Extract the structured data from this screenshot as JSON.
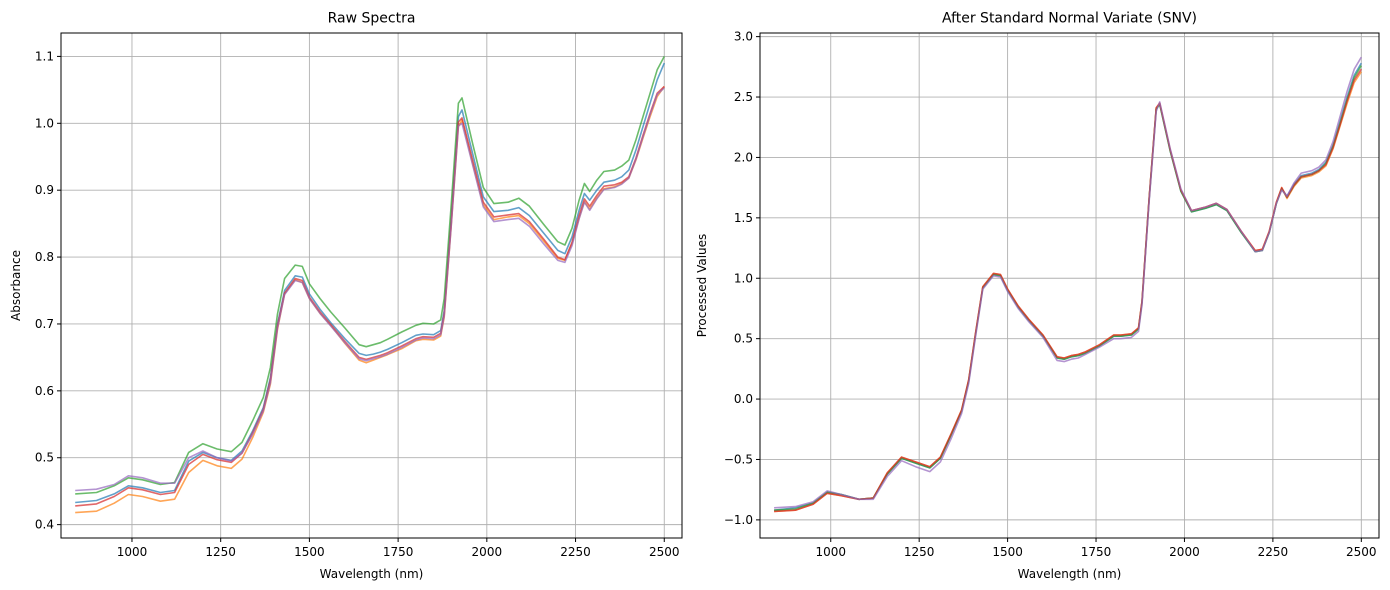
{
  "chart_data": [
    {
      "type": "line",
      "title": "Raw Spectra",
      "xlabel": "Wavelength (nm)",
      "ylabel": "Absorbance",
      "xlim": [
        800,
        2550
      ],
      "ylim": [
        0.38,
        1.135
      ],
      "xticks": [
        1000,
        1250,
        1500,
        1750,
        2000,
        2250,
        2500
      ],
      "yticks": [
        0.4,
        0.5,
        0.6,
        0.7,
        0.8,
        0.9,
        1.0,
        1.1
      ],
      "ytick_labels": [
        "0.4",
        "0.5",
        "0.6",
        "0.7",
        "0.8",
        "0.9",
        "1.0",
        "1.1"
      ],
      "grid": true,
      "x": [
        840,
        900,
        950,
        990,
        1030,
        1080,
        1120,
        1160,
        1200,
        1240,
        1280,
        1310,
        1340,
        1370,
        1390,
        1410,
        1430,
        1460,
        1480,
        1500,
        1530,
        1560,
        1600,
        1640,
        1660,
        1680,
        1700,
        1720,
        1760,
        1800,
        1820,
        1850,
        1870,
        1880,
        1900,
        1920,
        1930,
        1960,
        1990,
        2020,
        2060,
        2090,
        2120,
        2160,
        2200,
        2220,
        2240,
        2260,
        2275,
        2290,
        2310,
        2330,
        2360,
        2380,
        2400,
        2420,
        2440,
        2460,
        2480,
        2500
      ],
      "series": [
        {
          "color": "#1f77b4",
          "values": [
            0.433,
            0.436,
            0.446,
            0.458,
            0.455,
            0.448,
            0.451,
            0.495,
            0.508,
            0.5,
            0.496,
            0.51,
            0.54,
            0.575,
            0.62,
            0.7,
            0.75,
            0.772,
            0.77,
            0.745,
            0.722,
            0.702,
            0.678,
            0.656,
            0.653,
            0.655,
            0.658,
            0.662,
            0.672,
            0.683,
            0.685,
            0.684,
            0.69,
            0.72,
            0.86,
            1.01,
            1.02,
            0.955,
            0.89,
            0.868,
            0.87,
            0.874,
            0.862,
            0.836,
            0.81,
            0.805,
            0.83,
            0.87,
            0.895,
            0.885,
            0.9,
            0.912,
            0.915,
            0.92,
            0.93,
            0.96,
            0.995,
            1.03,
            1.065,
            1.09
          ],
          "opacity": 0.7
        },
        {
          "color": "#ff7f0e",
          "values": [
            0.418,
            0.42,
            0.432,
            0.445,
            0.442,
            0.435,
            0.438,
            0.478,
            0.496,
            0.488,
            0.484,
            0.498,
            0.53,
            0.568,
            0.61,
            0.692,
            0.745,
            0.766,
            0.762,
            0.738,
            0.716,
            0.698,
            0.671,
            0.646,
            0.642,
            0.646,
            0.65,
            0.654,
            0.663,
            0.675,
            0.677,
            0.676,
            0.682,
            0.71,
            0.848,
            0.995,
            1.005,
            0.94,
            0.878,
            0.856,
            0.86,
            0.862,
            0.85,
            0.824,
            0.798,
            0.795,
            0.82,
            0.858,
            0.883,
            0.872,
            0.888,
            0.902,
            0.905,
            0.91,
            0.918,
            0.945,
            0.978,
            1.01,
            1.04,
            1.055
          ],
          "opacity": 0.7
        },
        {
          "color": "#2ca02c",
          "values": [
            0.446,
            0.448,
            0.458,
            0.47,
            0.467,
            0.46,
            0.463,
            0.508,
            0.521,
            0.513,
            0.509,
            0.523,
            0.555,
            0.59,
            0.635,
            0.715,
            0.768,
            0.788,
            0.786,
            0.76,
            0.738,
            0.718,
            0.694,
            0.669,
            0.666,
            0.669,
            0.672,
            0.677,
            0.688,
            0.698,
            0.701,
            0.7,
            0.706,
            0.738,
            0.88,
            1.03,
            1.038,
            0.97,
            0.904,
            0.88,
            0.882,
            0.888,
            0.876,
            0.849,
            0.823,
            0.818,
            0.843,
            0.885,
            0.91,
            0.898,
            0.915,
            0.928,
            0.93,
            0.936,
            0.945,
            0.975,
            1.01,
            1.045,
            1.08,
            1.1
          ],
          "opacity": 0.7
        },
        {
          "color": "#d62728",
          "values": [
            0.428,
            0.431,
            0.442,
            0.455,
            0.452,
            0.445,
            0.448,
            0.49,
            0.505,
            0.497,
            0.493,
            0.507,
            0.537,
            0.572,
            0.616,
            0.697,
            0.746,
            0.768,
            0.765,
            0.74,
            0.718,
            0.699,
            0.674,
            0.65,
            0.647,
            0.65,
            0.653,
            0.657,
            0.667,
            0.678,
            0.681,
            0.68,
            0.686,
            0.715,
            0.852,
            1.002,
            1.008,
            0.945,
            0.882,
            0.86,
            0.863,
            0.865,
            0.853,
            0.827,
            0.8,
            0.796,
            0.822,
            0.862,
            0.887,
            0.876,
            0.892,
            0.906,
            0.908,
            0.912,
            0.92,
            0.948,
            0.982,
            1.015,
            1.045,
            1.055
          ],
          "opacity": 0.7
        },
        {
          "color": "#9467bd",
          "values": [
            0.451,
            0.453,
            0.46,
            0.473,
            0.47,
            0.462,
            0.462,
            0.5,
            0.51,
            0.5,
            0.495,
            0.507,
            0.535,
            0.57,
            0.612,
            0.694,
            0.744,
            0.765,
            0.762,
            0.738,
            0.716,
            0.697,
            0.672,
            0.648,
            0.645,
            0.648,
            0.651,
            0.655,
            0.665,
            0.676,
            0.679,
            0.678,
            0.684,
            0.712,
            0.848,
            0.996,
            1.0,
            0.938,
            0.875,
            0.853,
            0.856,
            0.858,
            0.846,
            0.82,
            0.795,
            0.792,
            0.817,
            0.857,
            0.882,
            0.87,
            0.887,
            0.901,
            0.904,
            0.909,
            0.918,
            0.946,
            0.98,
            1.013,
            1.043,
            1.053
          ],
          "opacity": 0.7
        }
      ]
    },
    {
      "type": "line",
      "title": "After Standard Normal Variate (SNV)",
      "xlabel": "Wavelength (nm)",
      "ylabel": "Processed Values",
      "xlim": [
        800,
        2550
      ],
      "ylim": [
        -1.15,
        3.03
      ],
      "xticks": [
        1000,
        1250,
        1500,
        1750,
        2000,
        2250,
        2500
      ],
      "yticks": [
        -1.0,
        -0.5,
        0.0,
        0.5,
        1.0,
        1.5,
        2.0,
        2.5,
        3.0
      ],
      "ytick_labels": [
        "−1.0",
        "−0.5",
        "0.0",
        "0.5",
        "1.0",
        "1.5",
        "2.0",
        "2.5",
        "3.0"
      ],
      "grid": true,
      "x": [
        840,
        900,
        950,
        990,
        1030,
        1080,
        1120,
        1160,
        1200,
        1240,
        1280,
        1310,
        1340,
        1370,
        1390,
        1410,
        1430,
        1460,
        1480,
        1500,
        1530,
        1560,
        1600,
        1640,
        1660,
        1680,
        1700,
        1720,
        1760,
        1800,
        1820,
        1850,
        1870,
        1880,
        1900,
        1920,
        1930,
        1960,
        1990,
        2020,
        2060,
        2090,
        2120,
        2160,
        2200,
        2220,
        2240,
        2260,
        2275,
        2290,
        2310,
        2330,
        2360,
        2380,
        2400,
        2420,
        2440,
        2460,
        2480,
        2500
      ],
      "series": [
        {
          "color": "#1f77b4",
          "values": [
            -0.92,
            -0.9,
            -0.86,
            -0.77,
            -0.79,
            -0.83,
            -0.82,
            -0.62,
            -0.49,
            -0.53,
            -0.57,
            -0.49,
            -0.3,
            -0.1,
            0.15,
            0.55,
            0.92,
            1.03,
            1.02,
            0.9,
            0.76,
            0.65,
            0.52,
            0.34,
            0.33,
            0.35,
            0.36,
            0.38,
            0.44,
            0.52,
            0.52,
            0.53,
            0.58,
            0.8,
            1.65,
            2.4,
            2.44,
            2.05,
            1.72,
            1.55,
            1.58,
            1.61,
            1.56,
            1.38,
            1.22,
            1.23,
            1.38,
            1.62,
            1.74,
            1.68,
            1.78,
            1.85,
            1.87,
            1.9,
            1.96,
            2.1,
            2.3,
            2.5,
            2.68,
            2.78
          ],
          "opacity": 0.7
        },
        {
          "color": "#ff7f0e",
          "values": [
            -0.93,
            -0.92,
            -0.87,
            -0.78,
            -0.8,
            -0.83,
            -0.82,
            -0.61,
            -0.48,
            -0.52,
            -0.56,
            -0.48,
            -0.29,
            -0.09,
            0.16,
            0.56,
            0.93,
            1.04,
            1.03,
            0.91,
            0.77,
            0.66,
            0.53,
            0.35,
            0.34,
            0.36,
            0.37,
            0.39,
            0.45,
            0.53,
            0.53,
            0.54,
            0.59,
            0.81,
            1.66,
            2.41,
            2.45,
            2.06,
            1.73,
            1.56,
            1.59,
            1.62,
            1.57,
            1.39,
            1.23,
            1.24,
            1.39,
            1.63,
            1.75,
            1.66,
            1.76,
            1.83,
            1.85,
            1.88,
            1.93,
            2.07,
            2.26,
            2.45,
            2.62,
            2.71
          ],
          "opacity": 0.7
        },
        {
          "color": "#2ca02c",
          "values": [
            -0.92,
            -0.91,
            -0.86,
            -0.77,
            -0.79,
            -0.83,
            -0.82,
            -0.62,
            -0.49,
            -0.53,
            -0.57,
            -0.49,
            -0.3,
            -0.1,
            0.15,
            0.55,
            0.92,
            1.03,
            1.02,
            0.9,
            0.76,
            0.65,
            0.52,
            0.34,
            0.33,
            0.35,
            0.36,
            0.38,
            0.44,
            0.52,
            0.52,
            0.53,
            0.58,
            0.8,
            1.65,
            2.4,
            2.44,
            2.05,
            1.72,
            1.55,
            1.58,
            1.61,
            1.56,
            1.38,
            1.22,
            1.23,
            1.38,
            1.62,
            1.74,
            1.67,
            1.77,
            1.84,
            1.86,
            1.89,
            1.95,
            2.09,
            2.28,
            2.48,
            2.66,
            2.76
          ],
          "opacity": 0.7
        },
        {
          "color": "#d62728",
          "values": [
            -0.93,
            -0.92,
            -0.87,
            -0.78,
            -0.8,
            -0.83,
            -0.82,
            -0.61,
            -0.48,
            -0.52,
            -0.56,
            -0.48,
            -0.29,
            -0.09,
            0.16,
            0.56,
            0.93,
            1.04,
            1.03,
            0.91,
            0.77,
            0.66,
            0.53,
            0.35,
            0.34,
            0.36,
            0.37,
            0.39,
            0.45,
            0.53,
            0.53,
            0.54,
            0.59,
            0.81,
            1.66,
            2.41,
            2.45,
            2.06,
            1.73,
            1.56,
            1.59,
            1.62,
            1.57,
            1.39,
            1.23,
            1.24,
            1.39,
            1.63,
            1.75,
            1.67,
            1.77,
            1.84,
            1.86,
            1.89,
            1.94,
            2.08,
            2.27,
            2.47,
            2.64,
            2.73
          ],
          "opacity": 0.7
        },
        {
          "color": "#9467bd",
          "values": [
            -0.9,
            -0.89,
            -0.85,
            -0.76,
            -0.79,
            -0.83,
            -0.83,
            -0.64,
            -0.51,
            -0.56,
            -0.6,
            -0.52,
            -0.33,
            -0.12,
            0.13,
            0.53,
            0.91,
            1.02,
            1.01,
            0.89,
            0.75,
            0.64,
            0.51,
            0.32,
            0.31,
            0.33,
            0.34,
            0.37,
            0.43,
            0.5,
            0.5,
            0.51,
            0.56,
            0.78,
            1.63,
            2.38,
            2.46,
            2.07,
            1.74,
            1.56,
            1.59,
            1.62,
            1.57,
            1.39,
            1.22,
            1.23,
            1.38,
            1.62,
            1.73,
            1.68,
            1.79,
            1.87,
            1.89,
            1.92,
            1.98,
            2.13,
            2.34,
            2.55,
            2.73,
            2.83
          ],
          "opacity": 0.7
        }
      ]
    }
  ],
  "style": {
    "grid_color": "#b0b0b0",
    "axis_color": "#000000"
  }
}
